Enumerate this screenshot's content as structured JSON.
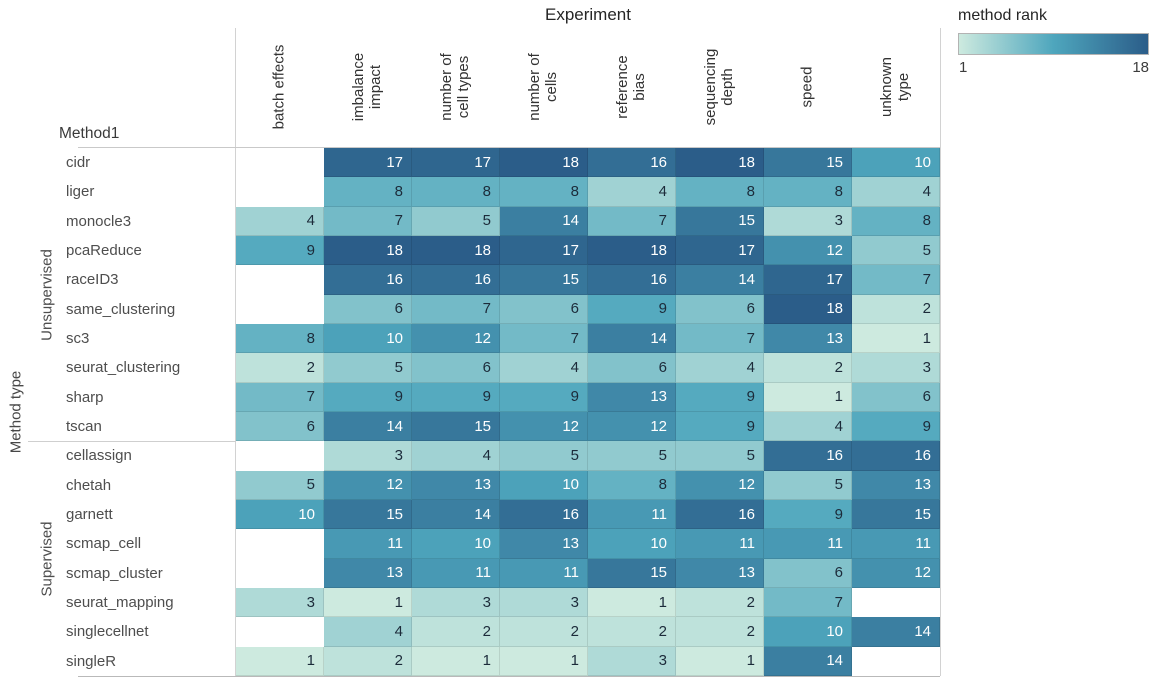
{
  "title": "Experiment",
  "row_axis_title": "Method1",
  "group_axis_title": "Method type",
  "legend": {
    "title": "method rank",
    "min_label": "1",
    "max_label": "18"
  },
  "colors": {
    "scale": [
      "#cdeadf",
      "#4ea6bd",
      "#2b5d89"
    ],
    "cell_text_dark": "#1c2b3a",
    "cell_text_light": "#ffffff"
  },
  "chart_data": {
    "type": "heatmap",
    "title": "Experiment",
    "legend_title": "method rank",
    "value_range": [
      1,
      18
    ],
    "columns": [
      "batch effects",
      "imbalance\nimpact",
      "number of\ncell types",
      "number of\ncells",
      "reference\nbias",
      "sequencing\ndepth",
      "speed",
      "unknown\ntype"
    ],
    "row_groups": [
      {
        "name": "Unsupervised",
        "rows": [
          {
            "method": "cidr",
            "values": [
              null,
              17,
              17,
              18,
              16,
              18,
              15,
              10
            ]
          },
          {
            "method": "liger",
            "values": [
              null,
              8,
              8,
              8,
              4,
              8,
              8,
              4
            ]
          },
          {
            "method": "monocle3",
            "values": [
              4,
              7,
              5,
              14,
              7,
              15,
              3,
              8
            ]
          },
          {
            "method": "pcaReduce",
            "values": [
              9,
              18,
              18,
              17,
              18,
              17,
              12,
              5
            ]
          },
          {
            "method": "raceID3",
            "values": [
              null,
              16,
              16,
              15,
              16,
              14,
              17,
              7
            ]
          },
          {
            "method": "same_clustering",
            "values": [
              null,
              6,
              7,
              6,
              9,
              6,
              18,
              2
            ]
          },
          {
            "method": "sc3",
            "values": [
              8,
              10,
              12,
              7,
              14,
              7,
              13,
              1
            ]
          },
          {
            "method": "seurat_clustering",
            "values": [
              2,
              5,
              6,
              4,
              6,
              4,
              2,
              3
            ]
          },
          {
            "method": "sharp",
            "values": [
              7,
              9,
              9,
              9,
              13,
              9,
              1,
              6
            ]
          },
          {
            "method": "tscan",
            "values": [
              6,
              14,
              15,
              12,
              12,
              9,
              4,
              9
            ]
          }
        ]
      },
      {
        "name": "Supervised",
        "rows": [
          {
            "method": "cellassign",
            "values": [
              null,
              3,
              4,
              5,
              5,
              5,
              16,
              16
            ]
          },
          {
            "method": "chetah",
            "values": [
              5,
              12,
              13,
              10,
              8,
              12,
              5,
              13
            ]
          },
          {
            "method": "garnett",
            "values": [
              10,
              15,
              14,
              16,
              11,
              16,
              9,
              15
            ]
          },
          {
            "method": "scmap_cell",
            "values": [
              null,
              11,
              10,
              13,
              10,
              11,
              11,
              11
            ]
          },
          {
            "method": "scmap_cluster",
            "values": [
              null,
              13,
              11,
              11,
              15,
              13,
              6,
              12
            ]
          },
          {
            "method": "seurat_mapping",
            "values": [
              3,
              1,
              3,
              3,
              1,
              2,
              7,
              null
            ]
          },
          {
            "method": "singlecellnet",
            "values": [
              null,
              4,
              2,
              2,
              2,
              2,
              10,
              14
            ]
          },
          {
            "method": "singleR",
            "values": [
              1,
              2,
              1,
              1,
              3,
              1,
              14,
              null
            ]
          }
        ]
      }
    ]
  }
}
